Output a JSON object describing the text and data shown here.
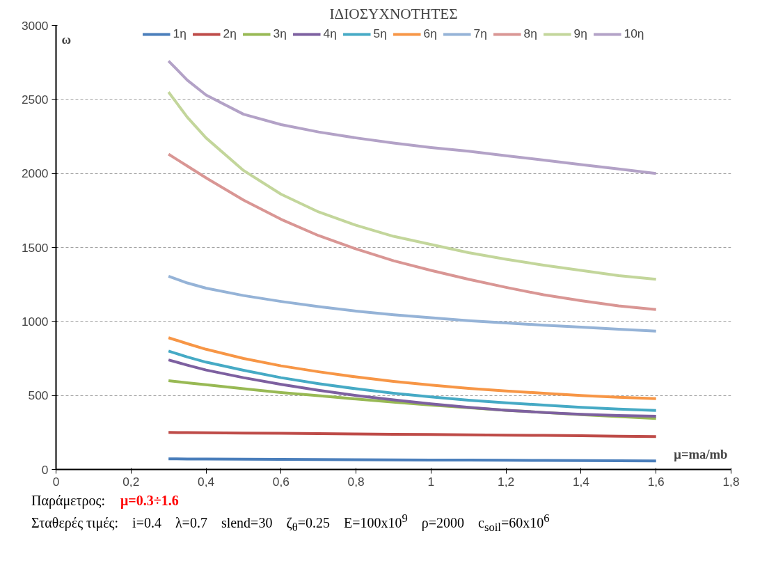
{
  "chart_data": {
    "type": "line",
    "title": "ΙΔΙΟΣΥΧΝΟΤΗΤΕΣ",
    "xlabel": "μ=ma/mb",
    "ylabel": "ω",
    "x": [
      0.3,
      0.35,
      0.4,
      0.5,
      0.6,
      0.7,
      0.8,
      0.9,
      1.0,
      1.1,
      1.2,
      1.3,
      1.4,
      1.5,
      1.6
    ],
    "series": [
      {
        "name": "1η",
        "color": "#4a7ebb",
        "values": [
          72,
          71,
          70,
          69,
          68,
          67,
          66,
          65,
          64,
          63,
          62,
          61,
          60,
          59,
          58
        ]
      },
      {
        "name": "2η",
        "color": "#be4b48",
        "values": [
          250,
          249,
          248,
          246,
          244,
          242,
          240,
          238,
          236,
          234,
          232,
          230,
          228,
          225,
          222
        ]
      },
      {
        "name": "3η",
        "color": "#98b954",
        "values": [
          600,
          585,
          572,
          545,
          520,
          498,
          476,
          455,
          435,
          417,
          400,
          385,
          370,
          357,
          345
        ]
      },
      {
        "name": "4η",
        "color": "#7d60a0",
        "values": [
          740,
          705,
          672,
          620,
          575,
          535,
          500,
          470,
          443,
          420,
          400,
          385,
          373,
          365,
          360
        ]
      },
      {
        "name": "5η",
        "color": "#46aac5",
        "values": [
          800,
          760,
          725,
          670,
          620,
          580,
          545,
          515,
          490,
          468,
          450,
          435,
          420,
          408,
          398
        ]
      },
      {
        "name": "6η",
        "color": "#f79646",
        "values": [
          890,
          850,
          812,
          750,
          700,
          660,
          625,
          595,
          570,
          548,
          530,
          515,
          500,
          488,
          478
        ]
      },
      {
        "name": "7η",
        "color": "#95b3d7",
        "values": [
          1305,
          1260,
          1225,
          1175,
          1135,
          1100,
          1070,
          1045,
          1025,
          1005,
          990,
          975,
          962,
          948,
          935
        ]
      },
      {
        "name": "8η",
        "color": "#d99694",
        "values": [
          2130,
          2050,
          1970,
          1820,
          1690,
          1580,
          1490,
          1410,
          1345,
          1285,
          1230,
          1180,
          1140,
          1105,
          1080
        ]
      },
      {
        "name": "9η",
        "color": "#c3d69b",
        "values": [
          2550,
          2380,
          2240,
          2020,
          1860,
          1740,
          1650,
          1575,
          1520,
          1465,
          1420,
          1380,
          1345,
          1310,
          1285
        ]
      },
      {
        "name": "10η",
        "color": "#b3a2c7",
        "values": [
          2760,
          2630,
          2530,
          2400,
          2330,
          2280,
          2240,
          2205,
          2175,
          2150,
          2120,
          2090,
          2060,
          2030,
          2000
        ]
      }
    ],
    "xlim": [
      0,
      1.8
    ],
    "ylim": [
      0,
      3000
    ],
    "xticks": [
      0,
      {
        "value": 0.2,
        "label": "0,2"
      },
      {
        "value": 0.4,
        "label": "0,4"
      },
      {
        "value": 0.6,
        "label": "0,6"
      },
      {
        "value": 0.8,
        "label": "0,8"
      },
      1,
      {
        "value": 1.2,
        "label": "1,2"
      },
      {
        "value": 1.4,
        "label": "1,4"
      },
      {
        "value": 1.6,
        "label": "1,6"
      },
      {
        "value": 1.8,
        "label": "1,8"
      }
    ],
    "yticks": [
      0,
      500,
      1000,
      1500,
      2000,
      2500,
      3000
    ],
    "grid": "y",
    "legend": "top",
    "marker": "none",
    "line_style": "solid",
    "annotations": [
      "Παράμετρος:",
      "μ=0.3÷1.6",
      "Σταθερές τιμές:    i=0.4    λ=0.7    slend=30    ζ$_{θ}$=0.25    E=100x10$^{9}$    ρ=2000    c$_{soil}$=60x10$^{6}$"
    ]
  }
}
